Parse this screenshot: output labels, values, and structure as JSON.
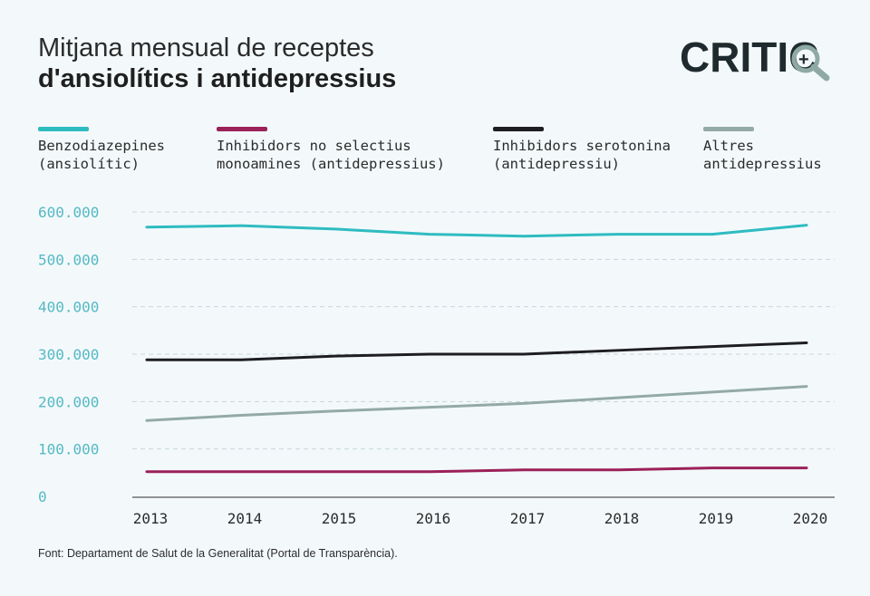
{
  "header": {
    "title_line1": "Mitjana mensual de receptes",
    "title_line2": "d'ansiolítics i antidepressius"
  },
  "logo": {
    "text": "CRITIC",
    "plus": "+",
    "accent_color": "#8fa9a3",
    "color": "#1f2a2e"
  },
  "legend": [
    {
      "label": "Benzodiazepines\n(ansiolític)",
      "color": "#2ebcc0"
    },
    {
      "label": "Inhibidors no selectius\nmonoamines (antidepressius)",
      "color": "#9b2159"
    },
    {
      "label": "Inhibidors serotonina\n(antidepressiu)",
      "color": "#1e1e22"
    },
    {
      "label": "Altres\nantidepressius",
      "color": "#93aaa5"
    }
  ],
  "source": "Font:  Departament de Salut de la Generalitat (Portal de Transparència).",
  "chart_data": {
    "type": "line",
    "x": [
      "2013",
      "2014",
      "2015",
      "2016",
      "2017",
      "2018",
      "2019",
      "2020"
    ],
    "ylim": [
      0,
      600000
    ],
    "yticks": [
      0,
      100000,
      200000,
      300000,
      400000,
      500000,
      600000
    ],
    "ytick_labels": [
      "0",
      "100.000",
      "200.000",
      "300.000",
      "400.000",
      "500.000",
      "600.000"
    ],
    "grid": true,
    "legend_position": "top",
    "series": [
      {
        "name": "Benzodiazepines (ansiolític)",
        "color": "#2ebcc0",
        "values": [
          568000,
          571000,
          564000,
          553000,
          549000,
          553000,
          553000,
          572000
        ]
      },
      {
        "name": "Inhibidors no selectius monoamines (antidepressius)",
        "color": "#9b2159",
        "values": [
          52000,
          52000,
          52000,
          52000,
          56000,
          56000,
          60000,
          60000
        ]
      },
      {
        "name": "Inhibidors serotonina (antidepressiu)",
        "color": "#1e1e22",
        "values": [
          288000,
          288000,
          296000,
          300000,
          300000,
          308000,
          316000,
          324000
        ]
      },
      {
        "name": "Altres antidepressius",
        "color": "#93aaa5",
        "values": [
          160000,
          171000,
          180000,
          188000,
          196000,
          208000,
          220000,
          232000
        ]
      }
    ]
  }
}
